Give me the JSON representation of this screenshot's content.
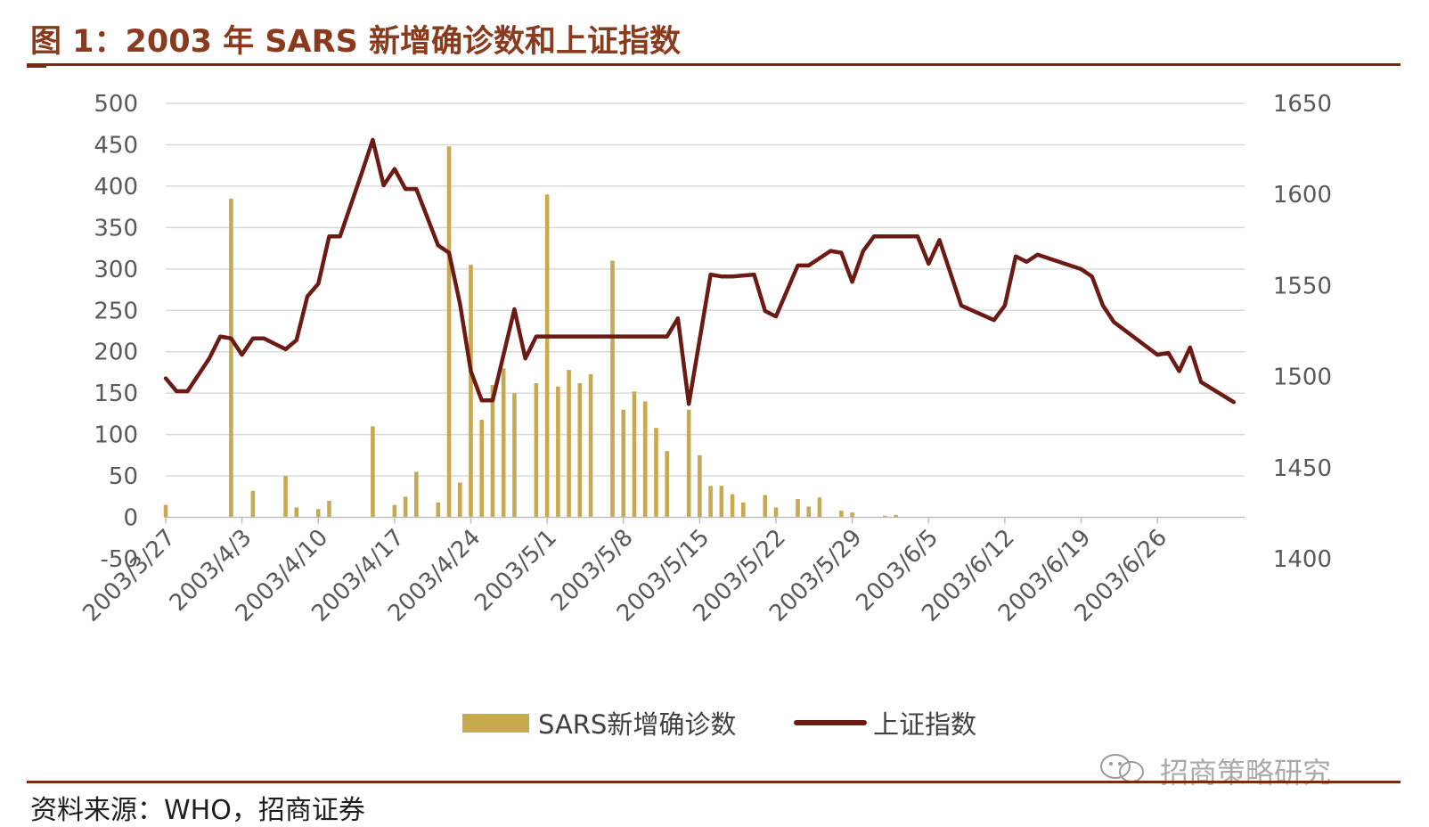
{
  "figure": {
    "title": "图 1：2003 年 SARS 新增确诊数和上证指数",
    "source": "资料来源：WHO，招商证券",
    "watermark": "招商策略研究"
  },
  "colors": {
    "bar": "#c8a950",
    "line": "#6b1b14",
    "rule": "#7b2a12",
    "title": "#8a3a1d",
    "grid": "#d9d9d9"
  },
  "chart_data": {
    "type": "bar+line",
    "title": "",
    "xlabel": "",
    "ylabel": "",
    "y_left": {
      "min": -50,
      "max": 500,
      "ticks": [
        -50,
        0,
        50,
        100,
        150,
        200,
        250,
        300,
        350,
        400,
        450,
        500
      ]
    },
    "y_right": {
      "min": 1400,
      "max": 1650,
      "ticks": [
        1400,
        1450,
        1500,
        1550,
        1600,
        1650
      ]
    },
    "x_range": [
      "2003-03-27",
      "2003-07-04"
    ],
    "x_tick_labels": [
      "2003/3/27",
      "2003/4/3",
      "2003/4/10",
      "2003/4/17",
      "2003/4/24",
      "2003/5/1",
      "2003/5/8",
      "2003/5/15",
      "2003/5/22",
      "2003/5/29",
      "2003/6/5",
      "2003/6/12",
      "2003/6/19",
      "2003/6/26"
    ],
    "x_tick_dates": [
      "2003-03-27",
      "2003-04-03",
      "2003-04-10",
      "2003-04-17",
      "2003-04-24",
      "2003-05-01",
      "2003-05-08",
      "2003-05-15",
      "2003-05-22",
      "2003-05-29",
      "2003-06-05",
      "2003-06-12",
      "2003-06-19",
      "2003-06-26"
    ],
    "grid": "horizontal",
    "legend": "bottom-center",
    "series": [
      {
        "name": "SARS新增确诊数",
        "type": "bar",
        "axis": "left",
        "points": [
          [
            "2003-03-27",
            15
          ],
          [
            "2003-04-02",
            385
          ],
          [
            "2003-04-04",
            32
          ],
          [
            "2003-04-07",
            50
          ],
          [
            "2003-04-08",
            12
          ],
          [
            "2003-04-10",
            10
          ],
          [
            "2003-04-11",
            20
          ],
          [
            "2003-04-15",
            110
          ],
          [
            "2003-04-17",
            15
          ],
          [
            "2003-04-18",
            25
          ],
          [
            "2003-04-19",
            55
          ],
          [
            "2003-04-21",
            18
          ],
          [
            "2003-04-22",
            448
          ],
          [
            "2003-04-23",
            42
          ],
          [
            "2003-04-24",
            305
          ],
          [
            "2003-04-25",
            118
          ],
          [
            "2003-04-26",
            160
          ],
          [
            "2003-04-27",
            180
          ],
          [
            "2003-04-28",
            150
          ],
          [
            "2003-04-30",
            162
          ],
          [
            "2003-05-01",
            390
          ],
          [
            "2003-05-02",
            158
          ],
          [
            "2003-05-03",
            178
          ],
          [
            "2003-05-04",
            162
          ],
          [
            "2003-05-05",
            173
          ],
          [
            "2003-05-07",
            310
          ],
          [
            "2003-05-08",
            130
          ],
          [
            "2003-05-09",
            152
          ],
          [
            "2003-05-10",
            140
          ],
          [
            "2003-05-11",
            108
          ],
          [
            "2003-05-12",
            80
          ],
          [
            "2003-05-14",
            130
          ],
          [
            "2003-05-15",
            75
          ],
          [
            "2003-05-16",
            38
          ],
          [
            "2003-05-17",
            38
          ],
          [
            "2003-05-18",
            28
          ],
          [
            "2003-05-19",
            18
          ],
          [
            "2003-05-21",
            27
          ],
          [
            "2003-05-22",
            12
          ],
          [
            "2003-05-24",
            22
          ],
          [
            "2003-05-25",
            13
          ],
          [
            "2003-05-26",
            24
          ],
          [
            "2003-05-28",
            8
          ],
          [
            "2003-05-29",
            6
          ],
          [
            "2003-06-01",
            2
          ],
          [
            "2003-06-02",
            3
          ]
        ]
      },
      {
        "name": "上证指数",
        "type": "line",
        "axis": "right",
        "points": [
          [
            "2003-03-27",
            1499
          ],
          [
            "2003-03-28",
            1492
          ],
          [
            "2003-03-29",
            1492
          ],
          [
            "2003-03-31",
            1510
          ],
          [
            "2003-04-01",
            1522
          ],
          [
            "2003-04-02",
            1521
          ],
          [
            "2003-04-03",
            1512
          ],
          [
            "2003-04-04",
            1521
          ],
          [
            "2003-04-05",
            1521
          ],
          [
            "2003-04-07",
            1515
          ],
          [
            "2003-04-08",
            1520
          ],
          [
            "2003-04-09",
            1544
          ],
          [
            "2003-04-10",
            1551
          ],
          [
            "2003-04-11",
            1577
          ],
          [
            "2003-04-12",
            1577
          ],
          [
            "2003-04-14",
            1612
          ],
          [
            "2003-04-15",
            1630
          ],
          [
            "2003-04-16",
            1605
          ],
          [
            "2003-04-17",
            1614
          ],
          [
            "2003-04-18",
            1603
          ],
          [
            "2003-04-19",
            1603
          ],
          [
            "2003-04-21",
            1572
          ],
          [
            "2003-04-22",
            1568
          ],
          [
            "2003-04-23",
            1540
          ],
          [
            "2003-04-24",
            1503
          ],
          [
            "2003-04-25",
            1487
          ],
          [
            "2003-04-26",
            1487
          ],
          [
            "2003-04-28",
            1537
          ],
          [
            "2003-04-29",
            1510
          ],
          [
            "2003-04-30",
            1522
          ],
          [
            "2003-05-12",
            1522
          ],
          [
            "2003-05-13",
            1532
          ],
          [
            "2003-05-14",
            1485
          ],
          [
            "2003-05-16",
            1556
          ],
          [
            "2003-05-17",
            1555
          ],
          [
            "2003-05-18",
            1555
          ],
          [
            "2003-05-20",
            1556
          ],
          [
            "2003-05-21",
            1536
          ],
          [
            "2003-05-22",
            1533
          ],
          [
            "2003-05-24",
            1561
          ],
          [
            "2003-05-25",
            1561
          ],
          [
            "2003-05-27",
            1569
          ],
          [
            "2003-05-28",
            1568
          ],
          [
            "2003-05-29",
            1552
          ],
          [
            "2003-05-30",
            1569
          ],
          [
            "2003-05-31",
            1577
          ],
          [
            "2003-06-04",
            1577
          ],
          [
            "2003-06-05",
            1562
          ],
          [
            "2003-06-06",
            1575
          ],
          [
            "2003-06-08",
            1539
          ],
          [
            "2003-06-11",
            1531
          ],
          [
            "2003-06-12",
            1539
          ],
          [
            "2003-06-13",
            1566
          ],
          [
            "2003-06-14",
            1563
          ],
          [
            "2003-06-15",
            1567
          ],
          [
            "2003-06-19",
            1559
          ],
          [
            "2003-06-20",
            1555
          ],
          [
            "2003-06-21",
            1539
          ],
          [
            "2003-06-22",
            1530
          ],
          [
            "2003-06-26",
            1512
          ],
          [
            "2003-06-27",
            1513
          ],
          [
            "2003-06-28",
            1503
          ],
          [
            "2003-06-29",
            1516
          ],
          [
            "2003-06-30",
            1497
          ],
          [
            "2003-07-03",
            1486
          ]
        ]
      }
    ]
  }
}
